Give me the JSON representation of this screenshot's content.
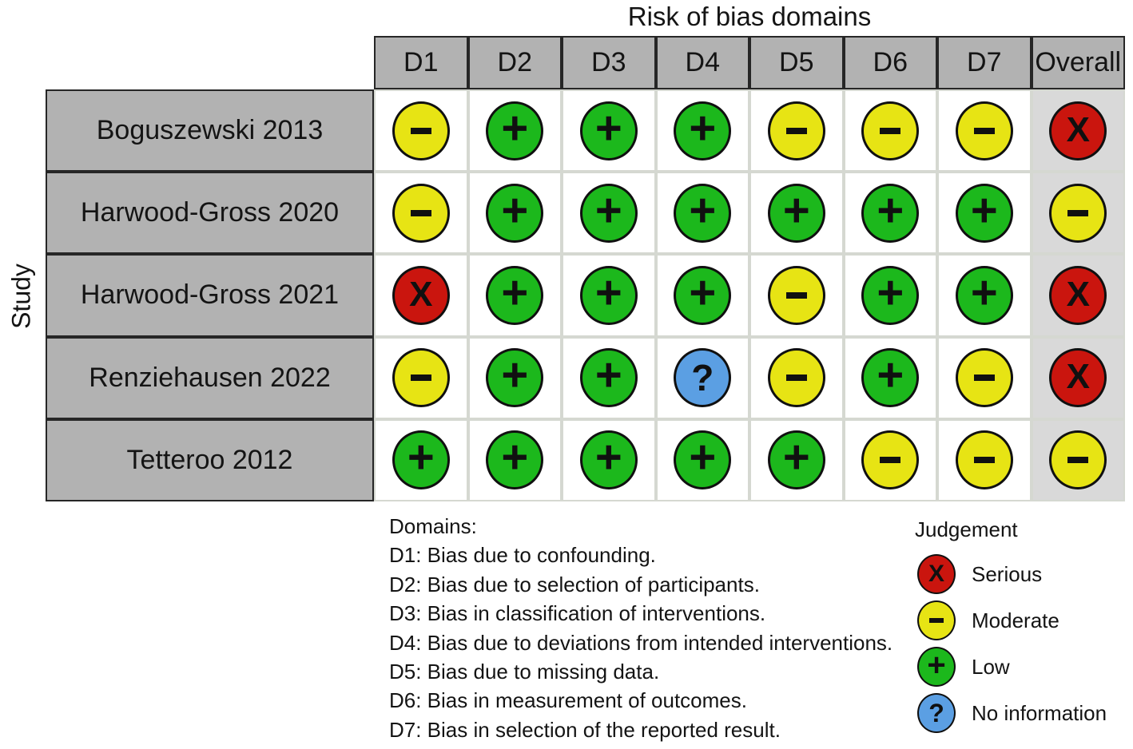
{
  "title": "Risk of bias domains",
  "y_axis_label": "Study",
  "columns": [
    "D1",
    "D2",
    "D3",
    "D4",
    "D5",
    "D6",
    "D7",
    "Overall"
  ],
  "rows": [
    {
      "study": "Boguszewski 2013",
      "judgements": [
        "moderate",
        "low",
        "low",
        "low",
        "moderate",
        "moderate",
        "moderate",
        "serious"
      ]
    },
    {
      "study": "Harwood-Gross 2020",
      "judgements": [
        "moderate",
        "low",
        "low",
        "low",
        "low",
        "low",
        "low",
        "moderate"
      ]
    },
    {
      "study": "Harwood-Gross 2021",
      "judgements": [
        "serious",
        "low",
        "low",
        "low",
        "moderate",
        "low",
        "low",
        "serious"
      ]
    },
    {
      "study": "Renziehausen 2022",
      "judgements": [
        "moderate",
        "low",
        "low",
        "no_information",
        "moderate",
        "low",
        "moderate",
        "serious"
      ]
    },
    {
      "study": "Tetteroo 2012",
      "judgements": [
        "low",
        "low",
        "low",
        "low",
        "low",
        "moderate",
        "moderate",
        "moderate"
      ]
    }
  ],
  "judgement_styles": {
    "serious": {
      "symbol": "X",
      "color": "#ca150e",
      "label": "Serious"
    },
    "moderate": {
      "symbol": "-",
      "color": "#e7e414",
      "label": "Moderate"
    },
    "low": {
      "symbol": "+",
      "color": "#1cb81c",
      "label": "Low"
    },
    "no_information": {
      "symbol": "?",
      "color": "#5b9fe3",
      "label": "No information"
    }
  },
  "legend": {
    "title": "Judgement",
    "items": [
      {
        "judgement": "serious",
        "label": "Serious"
      },
      {
        "judgement": "moderate",
        "label": "Moderate"
      },
      {
        "judgement": "low",
        "label": "Low"
      },
      {
        "judgement": "no_information",
        "label": "No information"
      }
    ]
  },
  "domains_note": {
    "title": "Domains:",
    "lines": [
      "D1: Bias due to confounding.",
      "D2: Bias due to selection of participants.",
      "D3: Bias in classification of interventions.",
      "D4: Bias due to deviations from intended interventions.",
      "D5: Bias due to missing data.",
      "D6: Bias in measurement of outcomes.",
      "D7: Bias in selection of the reported result."
    ]
  },
  "colors": {
    "header_fill": "#b2b2b2",
    "overall_column_fill": "#d9d9d9",
    "grid_line_light": "#d5d8d1",
    "grid_line_dark": "#262626"
  },
  "chart_data": {
    "type": "heatmap",
    "title": "Risk of bias domains",
    "xlabel": "",
    "ylabel": "Study",
    "columns": [
      "D1",
      "D2",
      "D3",
      "D4",
      "D5",
      "D6",
      "D7",
      "Overall"
    ],
    "rows": [
      "Boguszewski 2013",
      "Harwood-Gross 2020",
      "Harwood-Gross 2021",
      "Renziehausen 2022",
      "Tetteroo 2012"
    ],
    "values": [
      [
        "Moderate",
        "Low",
        "Low",
        "Low",
        "Moderate",
        "Moderate",
        "Moderate",
        "Serious"
      ],
      [
        "Moderate",
        "Low",
        "Low",
        "Low",
        "Low",
        "Low",
        "Low",
        "Moderate"
      ],
      [
        "Serious",
        "Low",
        "Low",
        "Low",
        "Moderate",
        "Low",
        "Low",
        "Serious"
      ],
      [
        "Moderate",
        "Low",
        "Low",
        "No information",
        "Moderate",
        "Low",
        "Moderate",
        "Serious"
      ],
      [
        "Low",
        "Low",
        "Low",
        "Low",
        "Low",
        "Moderate",
        "Moderate",
        "Moderate"
      ]
    ],
    "legend_title": "Judgement",
    "legend_entries": [
      "Serious",
      "Moderate",
      "Low",
      "No information"
    ],
    "legend_symbols": {
      "Serious": "X",
      "Moderate": "-",
      "Low": "+",
      "No information": "?"
    },
    "legend_position": "bottom-right",
    "grid": true
  }
}
